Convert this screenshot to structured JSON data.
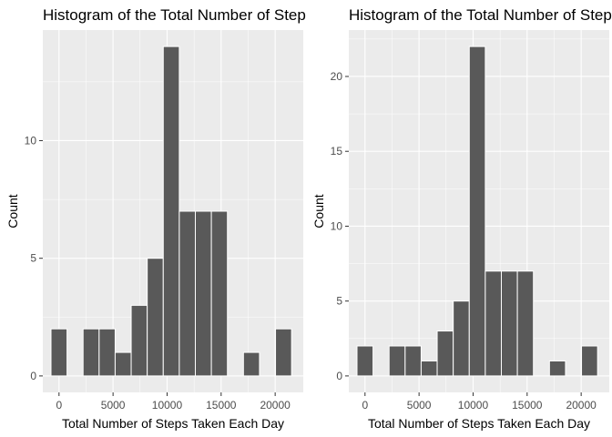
{
  "chart_data": [
    {
      "type": "bar",
      "title": "Histogram of the Total Number of Steps Taken Each Day",
      "xlabel": "Total Number of Steps Taken Each Day",
      "ylabel": "Count",
      "xlim": [
        -1500,
        22600
      ],
      "ylim": [
        -0.7,
        14.7
      ],
      "xticks": [
        0,
        5000,
        10000,
        15000,
        20000
      ],
      "yticks": [
        0,
        5,
        10
      ],
      "grid": true,
      "bin_width": 1484,
      "bins": [
        {
          "x": 0,
          "count": 2
        },
        {
          "x": 2968,
          "count": 2
        },
        {
          "x": 4452,
          "count": 2
        },
        {
          "x": 5936,
          "count": 1
        },
        {
          "x": 7420,
          "count": 3
        },
        {
          "x": 8904,
          "count": 5
        },
        {
          "x": 10388,
          "count": 14
        },
        {
          "x": 11872,
          "count": 7
        },
        {
          "x": 13356,
          "count": 7
        },
        {
          "x": 14840,
          "count": 7
        },
        {
          "x": 17808,
          "count": 1
        },
        {
          "x": 20776,
          "count": 2
        }
      ],
      "colors": {
        "bar": "#595959",
        "panel": "#ebebeb",
        "grid": "#ffffff"
      }
    },
    {
      "type": "bar",
      "title": "Histogram of the Total Number of Steps Taken Each Day",
      "xlabel": "Total Number of Steps Taken Each Day",
      "ylabel": "Count",
      "xlim": [
        -1500,
        22600
      ],
      "ylim": [
        -1.1,
        23.1
      ],
      "xticks": [
        0,
        5000,
        10000,
        15000,
        20000
      ],
      "yticks": [
        0,
        5,
        10,
        15,
        20
      ],
      "grid": true,
      "bin_width": 1484,
      "bins": [
        {
          "x": 0,
          "count": 2
        },
        {
          "x": 2968,
          "count": 2
        },
        {
          "x": 4452,
          "count": 2
        },
        {
          "x": 5936,
          "count": 1
        },
        {
          "x": 7420,
          "count": 3
        },
        {
          "x": 8904,
          "count": 5
        },
        {
          "x": 10388,
          "count": 22
        },
        {
          "x": 11872,
          "count": 7
        },
        {
          "x": 13356,
          "count": 7
        },
        {
          "x": 14840,
          "count": 7
        },
        {
          "x": 17808,
          "count": 1
        },
        {
          "x": 20776,
          "count": 2
        }
      ],
      "colors": {
        "bar": "#595959",
        "panel": "#ebebeb",
        "grid": "#ffffff"
      }
    }
  ]
}
